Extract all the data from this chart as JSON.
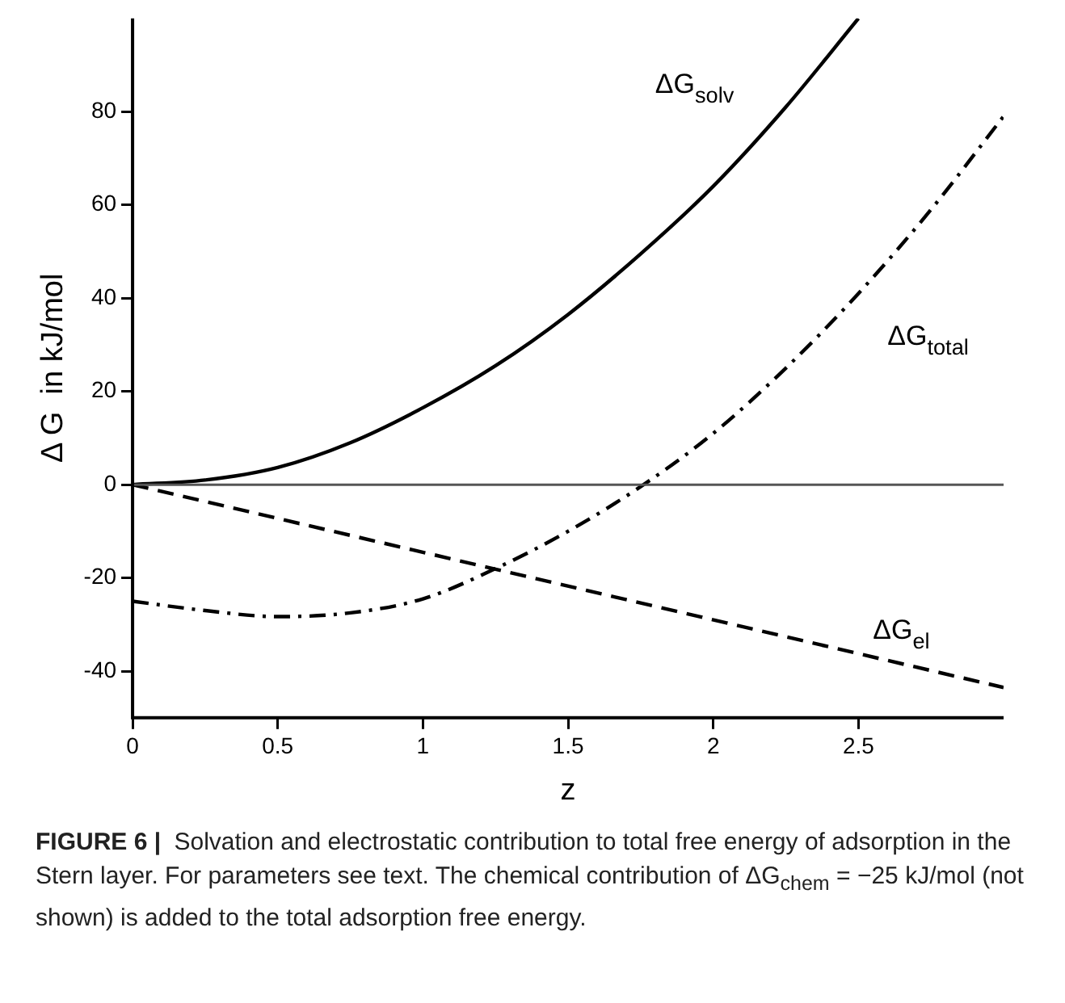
{
  "chart_data": {
    "type": "line",
    "xlabel": "z",
    "ylabel": "Δ G  in kJ/mol",
    "xlim": [
      0,
      3
    ],
    "xticks": [
      0,
      0.5,
      1,
      1.5,
      2,
      2.5
    ],
    "ylim": [
      -50,
      100
    ],
    "yticks": [
      -40,
      -20,
      0,
      20,
      40,
      60,
      80
    ],
    "grid": false,
    "legend": false,
    "marker": "none",
    "ref_lines": [
      {
        "axis": "y",
        "value": 0,
        "color": "#555555"
      }
    ],
    "series": [
      {
        "name": "ΔG$_{solv}$",
        "color": "#000000",
        "line_style": "solid",
        "x": [
          0,
          0.25,
          0.5,
          0.75,
          1,
          1.25,
          1.5,
          1.75,
          2,
          2.25,
          2.5
        ],
        "values": [
          0,
          1,
          3.7,
          9,
          16.5,
          25.5,
          36.5,
          49.5,
          64,
          81,
          100
        ]
      },
      {
        "name": "ΔG$_{total}$",
        "color": "#000000",
        "line_style": "dashdot",
        "x": [
          0,
          0.25,
          0.5,
          0.75,
          1,
          1.25,
          1.5,
          1.76,
          2,
          2.25,
          2.5,
          2.75,
          3
        ],
        "values": [
          -25,
          -27,
          -28.3,
          -27.5,
          -24.5,
          -18,
          -10,
          0,
          11,
          25,
          41,
          59,
          79
        ]
      },
      {
        "name": "ΔG$_{el}$",
        "color": "#000000",
        "line_style": "dashed",
        "x": [
          0,
          3
        ],
        "values": [
          0,
          -43.5
        ]
      }
    ],
    "annotations": [
      "FIGURE 6 |",
      "Solvation and electrostatic contribution to total free energy of adsorption in the Stern layer. For parameters see text. The chemical contribution of ΔG$_{chem}$ = −25 kJ/mol (not shown) is added to the total adsorption free energy."
    ]
  }
}
